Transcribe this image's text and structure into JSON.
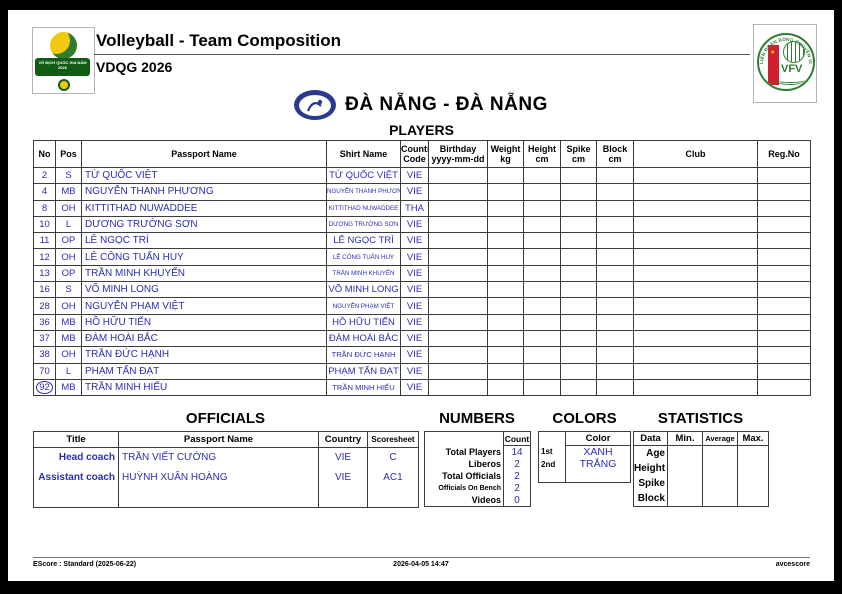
{
  "header": {
    "title": "Volleyball - Team Composition",
    "subtitle": "VDQG 2026",
    "left_logo_banner": "VÔ ĐỊCH QUỐC GIA NĂM 2026",
    "right_logo_ring_text": "LIÊN ĐOÀN BÓNG CHUYỀN VIỆT NAM",
    "right_logo_label": "VFV"
  },
  "team": {
    "name": "ĐÀ NẴNG - ĐÀ NẴNG"
  },
  "players": {
    "title": "PLAYERS",
    "columns": [
      {
        "l1": "No",
        "l2": ""
      },
      {
        "l1": "Pos",
        "l2": ""
      },
      {
        "l1": "Passport Name",
        "l2": ""
      },
      {
        "l1": "Shirt Name",
        "l2": ""
      },
      {
        "l1": "Country",
        "l2": "Code"
      },
      {
        "l1": "Birthday",
        "l2": "yyyy-mm-dd"
      },
      {
        "l1": "Weight",
        "l2": "kg"
      },
      {
        "l1": "Height",
        "l2": "cm"
      },
      {
        "l1": "Spike",
        "l2": "cm"
      },
      {
        "l1": "Block",
        "l2": "cm"
      },
      {
        "l1": "Club",
        "l2": ""
      },
      {
        "l1": "Reg.No",
        "l2": ""
      }
    ],
    "rows": [
      {
        "no": "2",
        "pos": "S",
        "passport_name": "TỪ QUỐC VIỆT",
        "shirt_name": "TỪ QUỐC VIỆT",
        "country": "VIE",
        "birthday": "",
        "weight": "",
        "height": "",
        "spike": "",
        "block": "",
        "club": "",
        "reg_no": "",
        "captain": false
      },
      {
        "no": "4",
        "pos": "MB",
        "passport_name": "NGUYỄN THANH PHƯƠNG",
        "shirt_name": "NGUYỄN THANH PHƯƠNG",
        "country": "VIE",
        "birthday": "",
        "weight": "",
        "height": "",
        "spike": "",
        "block": "",
        "club": "",
        "reg_no": "",
        "captain": false
      },
      {
        "no": "8",
        "pos": "OH",
        "passport_name": "KITTITHAD NUWADDEE",
        "shirt_name": "KITTITHAD NUWADDEE",
        "country": "THA",
        "birthday": "",
        "weight": "",
        "height": "",
        "spike": "",
        "block": "",
        "club": "",
        "reg_no": "",
        "captain": false
      },
      {
        "no": "10",
        "pos": "L",
        "passport_name": "DƯƠNG TRƯỜNG SƠN",
        "shirt_name": "DƯƠNG TRƯỜNG SƠN",
        "country": "VIE",
        "birthday": "",
        "weight": "",
        "height": "",
        "spike": "",
        "block": "",
        "club": "",
        "reg_no": "",
        "captain": false
      },
      {
        "no": "11",
        "pos": "OP",
        "passport_name": "LÊ NGỌC TRÍ",
        "shirt_name": "LÊ NGỌC TRÍ",
        "country": "VIE",
        "birthday": "",
        "weight": "",
        "height": "",
        "spike": "",
        "block": "",
        "club": "",
        "reg_no": "",
        "captain": false
      },
      {
        "no": "12",
        "pos": "OH",
        "passport_name": "LÊ CÔNG TUẤN HUY",
        "shirt_name": "LÊ CÔNG TUẤN HUY",
        "country": "VIE",
        "birthday": "",
        "weight": "",
        "height": "",
        "spike": "",
        "block": "",
        "club": "",
        "reg_no": "",
        "captain": false
      },
      {
        "no": "13",
        "pos": "OP",
        "passport_name": "TRẦN MINH KHUYẾN",
        "shirt_name": "TRẦN MINH KHUYẾN",
        "country": "VIE",
        "birthday": "",
        "weight": "",
        "height": "",
        "spike": "",
        "block": "",
        "club": "",
        "reg_no": "",
        "captain": false
      },
      {
        "no": "16",
        "pos": "S",
        "passport_name": "VÕ MINH LONG",
        "shirt_name": "VÕ MINH LONG",
        "country": "VIE",
        "birthday": "",
        "weight": "",
        "height": "",
        "spike": "",
        "block": "",
        "club": "",
        "reg_no": "",
        "captain": false
      },
      {
        "no": "28",
        "pos": "OH",
        "passport_name": "NGUYỄN PHẠM VIỆT",
        "shirt_name": "NGUYỄN PHẠM VIỆT",
        "country": "VIE",
        "birthday": "",
        "weight": "",
        "height": "",
        "spike": "",
        "block": "",
        "club": "",
        "reg_no": "",
        "captain": false
      },
      {
        "no": "36",
        "pos": "MB",
        "passport_name": "HỒ HỮU TIẾN",
        "shirt_name": "HỒ HỮU TIẾN",
        "country": "VIE",
        "birthday": "",
        "weight": "",
        "height": "",
        "spike": "",
        "block": "",
        "club": "",
        "reg_no": "",
        "captain": false
      },
      {
        "no": "37",
        "pos": "MB",
        "passport_name": "ĐÀM HOÀI BẮC",
        "shirt_name": "ĐÀM HOÀI BẮC",
        "country": "VIE",
        "birthday": "",
        "weight": "",
        "height": "",
        "spike": "",
        "block": "",
        "club": "",
        "reg_no": "",
        "captain": false
      },
      {
        "no": "38",
        "pos": "OH",
        "passport_name": "TRẦN ĐỨC HẠNH",
        "shirt_name": "TRẦN ĐỨC HẠNH",
        "country": "VIE",
        "birthday": "",
        "weight": "",
        "height": "",
        "spike": "",
        "block": "",
        "club": "",
        "reg_no": "",
        "captain": false
      },
      {
        "no": "70",
        "pos": "L",
        "passport_name": "PHẠM TẤN ĐẠT",
        "shirt_name": "PHẠM TẤN ĐẠT",
        "country": "VIE",
        "birthday": "",
        "weight": "",
        "height": "",
        "spike": "",
        "block": "",
        "club": "",
        "reg_no": "",
        "captain": false
      },
      {
        "no": "92",
        "pos": "MB",
        "passport_name": "TRẦN MINH HIẾU",
        "shirt_name": "TRẦN MINH HIẾU",
        "country": "VIE",
        "birthday": "",
        "weight": "",
        "height": "",
        "spike": "",
        "block": "",
        "club": "",
        "reg_no": "",
        "captain": true
      }
    ]
  },
  "officials": {
    "title": "OFFICIALS",
    "columns": [
      "Title",
      "Passport Name",
      "Country",
      "Scoresheet"
    ],
    "rows": [
      {
        "title": "Head coach",
        "name": "TRẦN VIẾT CƯỜNG",
        "country": "VIE",
        "scoresheet": "C"
      },
      {
        "title": "Assistant coach",
        "name": "HUỲNH XUÂN HOÀNG",
        "country": "VIE",
        "scoresheet": "AC1"
      }
    ]
  },
  "numbers": {
    "title": "NUMBERS",
    "count_header": "Count",
    "rows": [
      {
        "label": "Total Players",
        "count": "14"
      },
      {
        "label": "Liberos",
        "count": "2"
      },
      {
        "label": "Total Officials",
        "count": "2"
      },
      {
        "label": "Officials On Bench",
        "count": "2"
      },
      {
        "label": "Videos",
        "count": "0"
      }
    ]
  },
  "colors": {
    "title": "COLORS",
    "color_header": "Color",
    "rows": [
      {
        "rank": "1st",
        "value": "XANH"
      },
      {
        "rank": "2nd",
        "value": "TRẮNG"
      }
    ]
  },
  "statistics": {
    "title": "STATISTICS",
    "columns": [
      "Data",
      "Min.",
      "Average",
      "Max."
    ],
    "rows": [
      "Age",
      "Height",
      "Spike",
      "Block"
    ]
  },
  "footer": {
    "left": "EScore : Standard (2025-06-22)",
    "center": "2026-04-05 14:47",
    "right": "avcescore"
  },
  "palette": {
    "data_blue": "#2D2DB4",
    "green": "#2e7d32",
    "dark_green": "#0f5c12",
    "yellow": "#f2c911",
    "red": "#cf2030",
    "team_blue": "#2b3990"
  }
}
